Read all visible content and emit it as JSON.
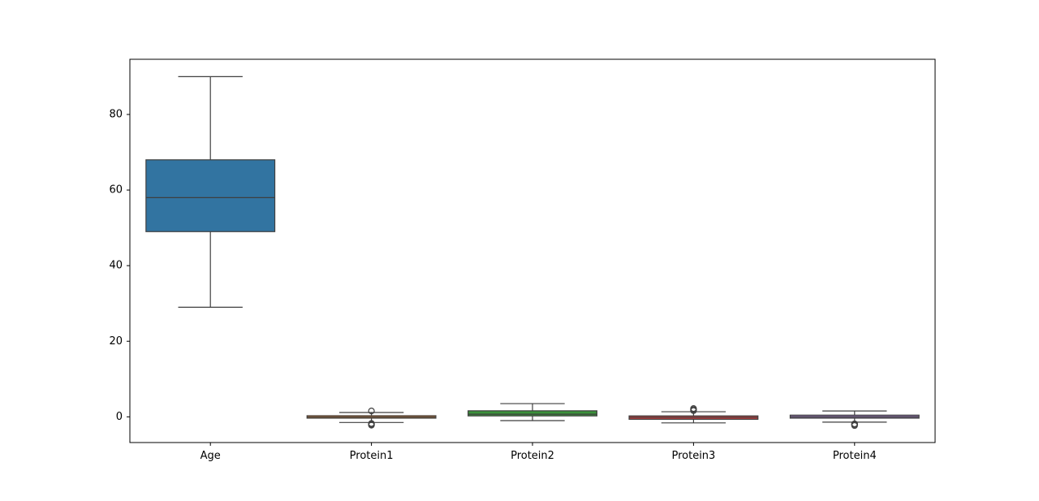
{
  "chart_data": {
    "type": "box",
    "title": "",
    "xlabel": "",
    "ylabel": "",
    "ylim": [
      -6.8,
      94.6
    ],
    "yticks": [
      0,
      20,
      40,
      60,
      80
    ],
    "grid": false,
    "legend": "none",
    "categories": [
      "Age",
      "Protein1",
      "Protein2",
      "Protein3",
      "Protein4"
    ],
    "series": [
      {
        "category": "Age",
        "color": "#3274a1",
        "whisker_low": 29,
        "q1": 49,
        "median": 58,
        "q3": 68,
        "whisker_high": 90,
        "outliers": []
      },
      {
        "category": "Protein1",
        "color": "#e1812c",
        "whisker_low": -1.5,
        "q1": -0.35,
        "median": -0.05,
        "q3": 0.3,
        "whisker_high": 1.15,
        "outliers": [
          1.55,
          -1.75,
          -2.0,
          -2.2
        ]
      },
      {
        "category": "Protein2",
        "color": "#3a923a",
        "whisker_low": -1.0,
        "q1": 0.25,
        "median": 0.7,
        "q3": 1.6,
        "whisker_high": 3.5,
        "outliers": []
      },
      {
        "category": "Protein3",
        "color": "#c03d3e",
        "whisker_low": -1.6,
        "q1": -0.65,
        "median": -0.15,
        "q3": 0.25,
        "whisker_high": 1.35,
        "outliers": [
          1.65,
          1.9,
          2.2
        ]
      },
      {
        "category": "Protein4",
        "color": "#9372b2",
        "whisker_low": -1.4,
        "q1": -0.35,
        "median": 0.0,
        "q3": 0.45,
        "whisker_high": 1.55,
        "outliers": [
          -1.85,
          -2.05,
          -2.3
        ]
      }
    ],
    "line_color": "#3f3f3f"
  }
}
